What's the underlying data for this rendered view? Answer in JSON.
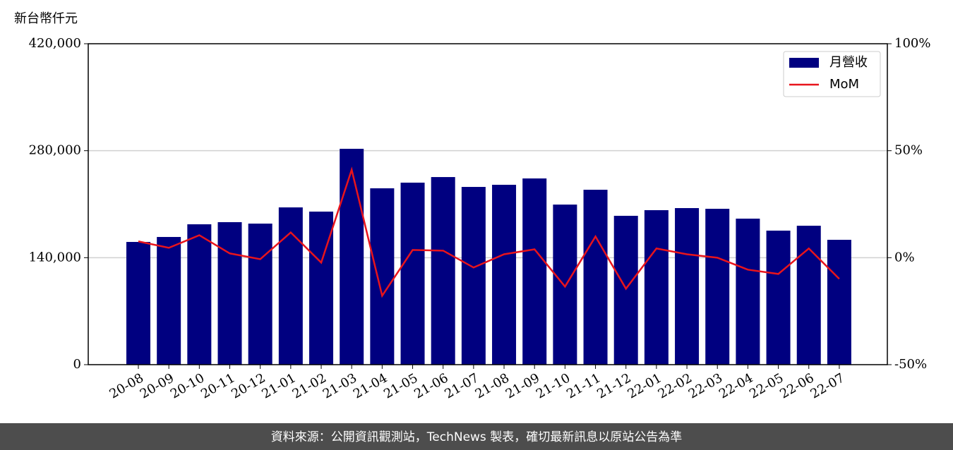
{
  "chart_data": {
    "type": "bar_line",
    "y_axis_label": "新台幣仟元",
    "categories": [
      "20-08",
      "20-09",
      "20-10",
      "20-11",
      "20-12",
      "21-01",
      "21-02",
      "21-03",
      "21-04",
      "21-05",
      "21-06",
      "21-07",
      "21-08",
      "21-09",
      "21-10",
      "21-11",
      "21-12",
      "22-01",
      "22-02",
      "22-03",
      "22-04",
      "22-05",
      "22-06",
      "22-07"
    ],
    "series": [
      {
        "name": "月營收",
        "type": "bar",
        "color": "#000080",
        "values": [
          160600,
          167100,
          183700,
          186500,
          184600,
          205800,
          200300,
          282500,
          230800,
          238200,
          245500,
          232600,
          235400,
          243700,
          209500,
          228900,
          194800,
          202200,
          204900,
          204000,
          191100,
          175400,
          181800,
          163400
        ]
      },
      {
        "name": "MoM",
        "type": "line",
        "axis": "y2",
        "color": "#e8141c",
        "values": [
          7.6,
          4.6,
          10.5,
          2.0,
          -0.7,
          11.8,
          -2.3,
          41.1,
          -17.8,
          3.6,
          3.3,
          -4.6,
          1.6,
          3.9,
          -13.5,
          9.9,
          -14.5,
          4.3,
          1.6,
          0,
          -5.6,
          -7.6,
          4.3,
          -9.9
        ]
      }
    ],
    "ylim": [
      0,
      420000
    ],
    "yticks": [
      0,
      {
        "value": 140000,
        "label": "140,000"
      },
      {
        "value": 280000,
        "label": "280,000"
      },
      {
        "value": 420000,
        "label": "420,000"
      }
    ],
    "y2lim": [
      -50,
      100
    ],
    "y2ticks": [
      {
        "value": -50,
        "label": "-50%"
      },
      {
        "value": 0,
        "label": "0%"
      },
      {
        "value": 50,
        "label": "50%"
      },
      {
        "value": 100,
        "label": "100%"
      }
    ],
    "grid": true,
    "legend": "upper right"
  },
  "footer": "資料來源：公開資訊觀測站，TechNews 製表，確切最新訊息以原站公告為準"
}
